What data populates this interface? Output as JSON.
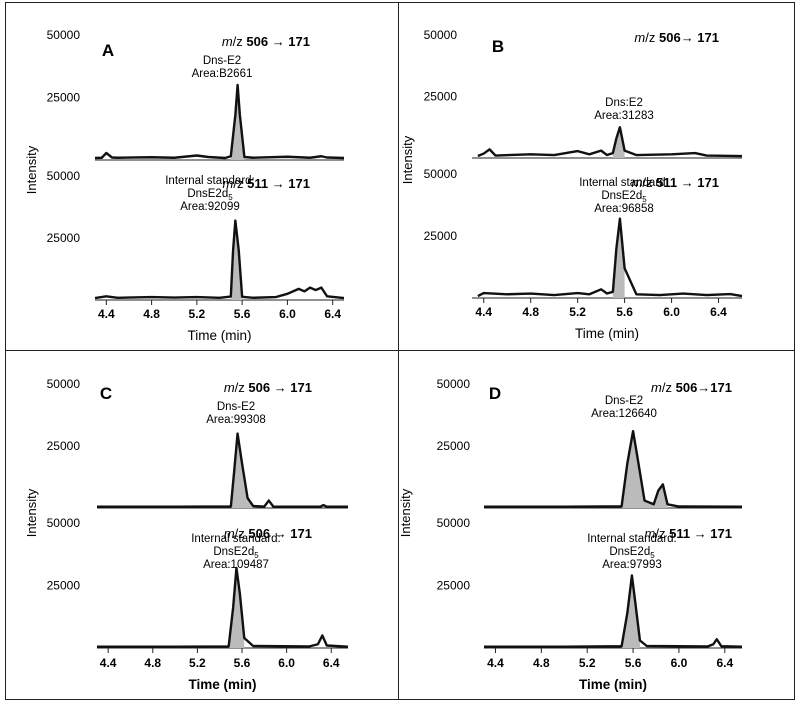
{
  "chart_data": [
    {
      "type": "line",
      "panel_label": "A",
      "xlabel": "Time (min)",
      "ylabel": "Intensity",
      "x_ticks": [
        "4.4",
        "4.8",
        "5.2",
        "5.6",
        "6.0",
        "6.4"
      ],
      "xlim": [
        4.3,
        6.5
      ],
      "traces": [
        {
          "transition": {
            "mz_italic": "m",
            "mz_rest": "/z",
            "bold": " 506 → 171"
          },
          "y_ticks": [
            "50000",
            "25000"
          ],
          "ylim": [
            0,
            50000
          ],
          "annotation": [
            "Dns-E2",
            "Area:B2661"
          ],
          "peak_fill": "#bbbbbb",
          "x": [
            4.3,
            4.36,
            4.4,
            4.45,
            4.5,
            4.8,
            5.0,
            5.2,
            5.3,
            5.45,
            5.5,
            5.54,
            5.56,
            5.58,
            5.62,
            5.7,
            6.0,
            6.2,
            6.3,
            6.35,
            6.5
          ],
          "y": [
            800,
            900,
            2800,
            1000,
            900,
            1100,
            900,
            1800,
            1200,
            800,
            1500,
            18000,
            30000,
            18000,
            1200,
            900,
            1300,
            900,
            1500,
            1000,
            800
          ],
          "peak_range": [
            5.5,
            5.62
          ]
        },
        {
          "transition": {
            "mz_italic": "m",
            "mz_rest": "/z",
            "bold": " 511 → 171"
          },
          "y_ticks": [
            "50000",
            "25000"
          ],
          "ylim": [
            0,
            50000
          ],
          "annotation": [
            "Internal standard:",
            "DnsE2d5",
            "Area:92099"
          ],
          "peak_fill": "#bbbbbb",
          "x": [
            4.3,
            4.4,
            4.5,
            4.8,
            5.0,
            5.2,
            5.4,
            5.5,
            5.52,
            5.54,
            5.57,
            5.6,
            5.7,
            5.9,
            6.0,
            6.1,
            6.15,
            6.2,
            6.25,
            6.3,
            6.35,
            6.5
          ],
          "y": [
            800,
            1500,
            900,
            1200,
            1000,
            1200,
            900,
            1400,
            20000,
            32000,
            20000,
            1300,
            900,
            1200,
            2500,
            4500,
            3500,
            5000,
            4000,
            5000,
            1500,
            800
          ],
          "peak_range": [
            5.48,
            5.6
          ]
        }
      ]
    },
    {
      "type": "line",
      "panel_label": "B",
      "xlabel": "Time (min)",
      "ylabel": "Intensity",
      "x_ticks": [
        "4.4",
        "4.8",
        "5.2",
        "5.6",
        "6.0",
        "6.4"
      ],
      "xlim": [
        4.3,
        6.6
      ],
      "traces": [
        {
          "transition": {
            "mz_italic": "m",
            "mz_rest": "/z",
            "bold": " 506→ 171"
          },
          "y_ticks": [
            "50000",
            "25000"
          ],
          "ylim": [
            0,
            50000
          ],
          "annotation": [
            "Dns:E2",
            "Area:31283"
          ],
          "peak_fill": "#bbbbbb",
          "x": [
            4.35,
            4.4,
            4.45,
            4.5,
            4.8,
            5.0,
            5.2,
            5.3,
            5.4,
            5.45,
            5.5,
            5.53,
            5.56,
            5.6,
            5.7,
            6.0,
            6.2,
            6.3,
            6.6
          ],
          "y": [
            800,
            1800,
            3500,
            1000,
            1500,
            1200,
            2800,
            1500,
            3000,
            1200,
            2000,
            8000,
            12500,
            3000,
            1200,
            1500,
            2000,
            1000,
            800
          ],
          "peak_range": [
            5.48,
            5.62
          ]
        },
        {
          "transition": {
            "mz_italic": "m",
            "mz_rest": "/z",
            "bold": " 511 → 171"
          },
          "y_ticks": [
            "50000",
            "25000"
          ],
          "ylim": [
            0,
            50000
          ],
          "annotation": [
            "Internal standard:",
            "DnsE2d5",
            "Area:96858"
          ],
          "peak_fill": "#bbbbbb",
          "x": [
            4.35,
            4.4,
            4.6,
            4.8,
            5.0,
            5.2,
            5.3,
            5.4,
            5.45,
            5.5,
            5.53,
            5.56,
            5.6,
            5.7,
            5.9,
            6.1,
            6.3,
            6.5,
            6.6
          ],
          "y": [
            800,
            2000,
            1500,
            1800,
            1200,
            2000,
            1500,
            3500,
            1800,
            2500,
            20000,
            32000,
            12000,
            1500,
            1200,
            1800,
            1200,
            1600,
            800
          ],
          "peak_range": [
            5.48,
            5.62
          ]
        }
      ]
    },
    {
      "type": "line",
      "panel_label": "C",
      "xlabel": "Time (min)",
      "ylabel": "Intensity",
      "x_ticks": [
        "4.4",
        "4.8",
        "5.2",
        "5.6",
        "6.0",
        "6.4"
      ],
      "xlim": [
        4.3,
        6.55
      ],
      "traces": [
        {
          "transition": {
            "mz_italic": "m",
            "mz_rest": "/z",
            "bold": " 506 → 171"
          },
          "y_ticks": [
            "50000",
            "25000"
          ],
          "ylim": [
            0,
            50000
          ],
          "annotation": [
            "Dns-E2",
            "Area:99308"
          ],
          "peak_fill": "#bbbbbb",
          "x": [
            4.3,
            5.0,
            5.5,
            5.53,
            5.56,
            5.6,
            5.65,
            5.7,
            5.8,
            5.84,
            5.88,
            5.95,
            6.3,
            6.33,
            6.36,
            6.55
          ],
          "y": [
            500,
            500,
            600,
            15000,
            30000,
            18000,
            4000,
            800,
            600,
            3000,
            600,
            500,
            500,
            1200,
            500,
            500
          ],
          "peak_range": [
            5.5,
            5.7
          ]
        },
        {
          "transition": {
            "mz_italic": "m",
            "mz_rest": "/z",
            "bold": " 506 → 171"
          },
          "y_ticks": [
            "50000",
            "25000"
          ],
          "ylim": [
            0,
            50000
          ],
          "annotation": [
            "Internal standard:",
            "DnsE2d5",
            "Area:109487"
          ],
          "peak_fill": "#bbbbbb",
          "x": [
            4.3,
            5.0,
            5.48,
            5.52,
            5.55,
            5.58,
            5.62,
            5.7,
            6.2,
            6.28,
            6.32,
            6.36,
            6.55
          ],
          "y": [
            500,
            500,
            600,
            16000,
            32000,
            22000,
            4000,
            800,
            600,
            1500,
            5000,
            1000,
            500
          ],
          "peak_range": [
            5.48,
            5.68
          ]
        }
      ]
    },
    {
      "type": "line",
      "panel_label": "D",
      "xlabel": "Time (min)",
      "ylabel": "Intensity",
      "x_ticks": [
        "4.4",
        "4.8",
        "5.2",
        "5.6",
        "6.0",
        "6.4"
      ],
      "xlim": [
        4.3,
        6.55
      ],
      "traces": [
        {
          "transition": {
            "mz_italic": "m",
            "mz_rest": "/z",
            "bold": " 506→171"
          },
          "y_ticks": [
            "50000",
            "25000"
          ],
          "ylim": [
            0,
            50000
          ],
          "annotation": [
            "Dns-E2",
            "Area:126640"
          ],
          "peak_fill": "#bbbbbb",
          "x": [
            4.3,
            5.0,
            5.5,
            5.55,
            5.6,
            5.64,
            5.7,
            5.78,
            5.82,
            5.86,
            5.9,
            6.0,
            6.55
          ],
          "y": [
            500,
            500,
            700,
            18000,
            31000,
            20000,
            3000,
            1500,
            7000,
            9500,
            1500,
            600,
            500
          ],
          "peak_range": [
            5.5,
            5.93
          ]
        },
        {
          "transition": {
            "mz_italic": "m",
            "mz_rest": "/z",
            "bold": " 511 → 171"
          },
          "y_ticks": [
            "50000",
            "25000"
          ],
          "ylim": [
            0,
            50000
          ],
          "annotation": [
            "Internal standard:",
            "DnsE2d5",
            "Area:97993"
          ],
          "peak_fill": "#bbbbbb",
          "x": [
            4.3,
            5.0,
            5.5,
            5.55,
            5.59,
            5.62,
            5.66,
            5.72,
            6.25,
            6.3,
            6.33,
            6.37,
            6.55
          ],
          "y": [
            500,
            500,
            700,
            14000,
            29000,
            18000,
            3000,
            800,
            600,
            1500,
            3500,
            700,
            500
          ],
          "peak_range": [
            5.5,
            5.7
          ]
        }
      ]
    }
  ]
}
